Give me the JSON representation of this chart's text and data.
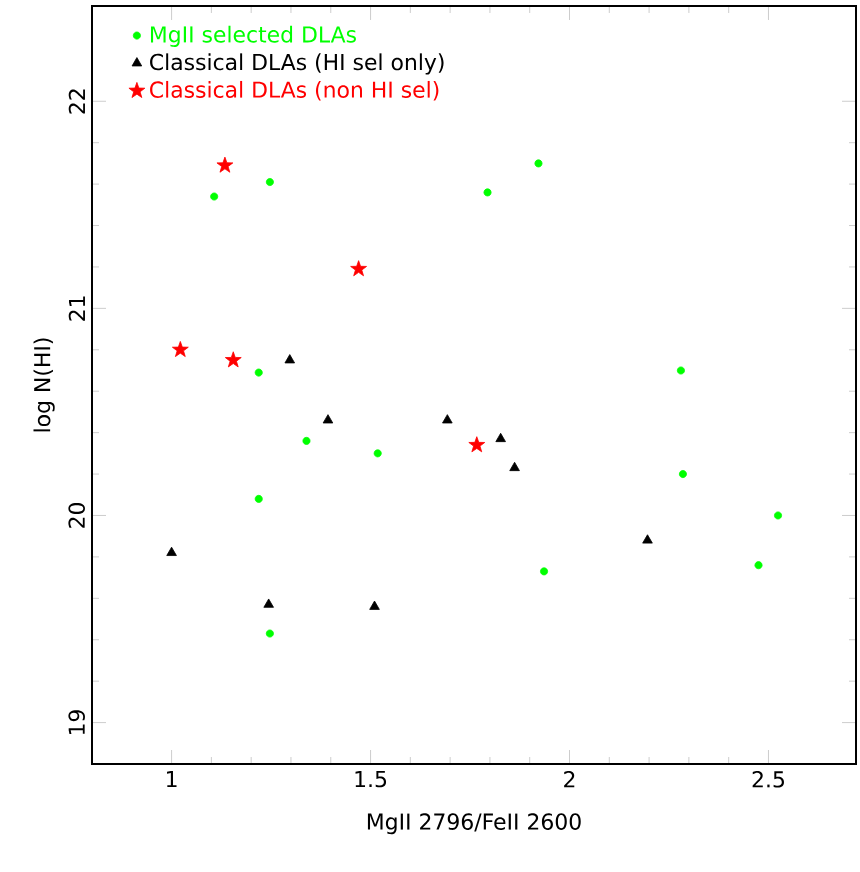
{
  "chart_data": {
    "type": "scatter",
    "xlabel": "MgII 2796/FeII 2600",
    "ylabel": "log N(HI)",
    "xlim": [
      0.8,
      2.72
    ],
    "ylim": [
      18.8,
      22.46
    ],
    "xticks": [
      1,
      1.5,
      2,
      2.5
    ],
    "yticks": [
      19,
      20,
      21,
      22
    ],
    "legend": "top left",
    "grid": false,
    "series": [
      {
        "name": "MgII selected DLAs",
        "color": "#00ff00",
        "marker": "circle",
        "x": [
          1.107,
          1.247,
          1.794,
          1.922,
          1.219,
          2.28,
          1.339,
          1.518,
          1.219,
          2.285,
          2.524,
          1.936,
          2.475,
          1.247
        ],
        "values": [
          21.54,
          21.61,
          21.56,
          21.7,
          20.69,
          20.7,
          20.36,
          20.3,
          20.08,
          20.2,
          20.0,
          19.73,
          19.76,
          19.43
        ]
      },
      {
        "name": "Classical DLAs (HI sel only)",
        "color": "#000000",
        "marker": "triangle",
        "x": [
          1.297,
          1.393,
          1.693,
          1.827,
          1.862,
          1.0,
          2.196,
          1.244,
          1.51
        ],
        "values": [
          20.75,
          20.46,
          20.46,
          20.37,
          20.23,
          19.82,
          19.88,
          19.57,
          19.56
        ]
      },
      {
        "name": "Classical DLAs (non HI sel)",
        "color": "#ff0000",
        "marker": "star",
        "x": [
          1.134,
          1.47,
          1.022,
          1.155,
          1.767
        ],
        "values": [
          21.69,
          21.19,
          20.8,
          20.75,
          20.34
        ]
      }
    ]
  }
}
